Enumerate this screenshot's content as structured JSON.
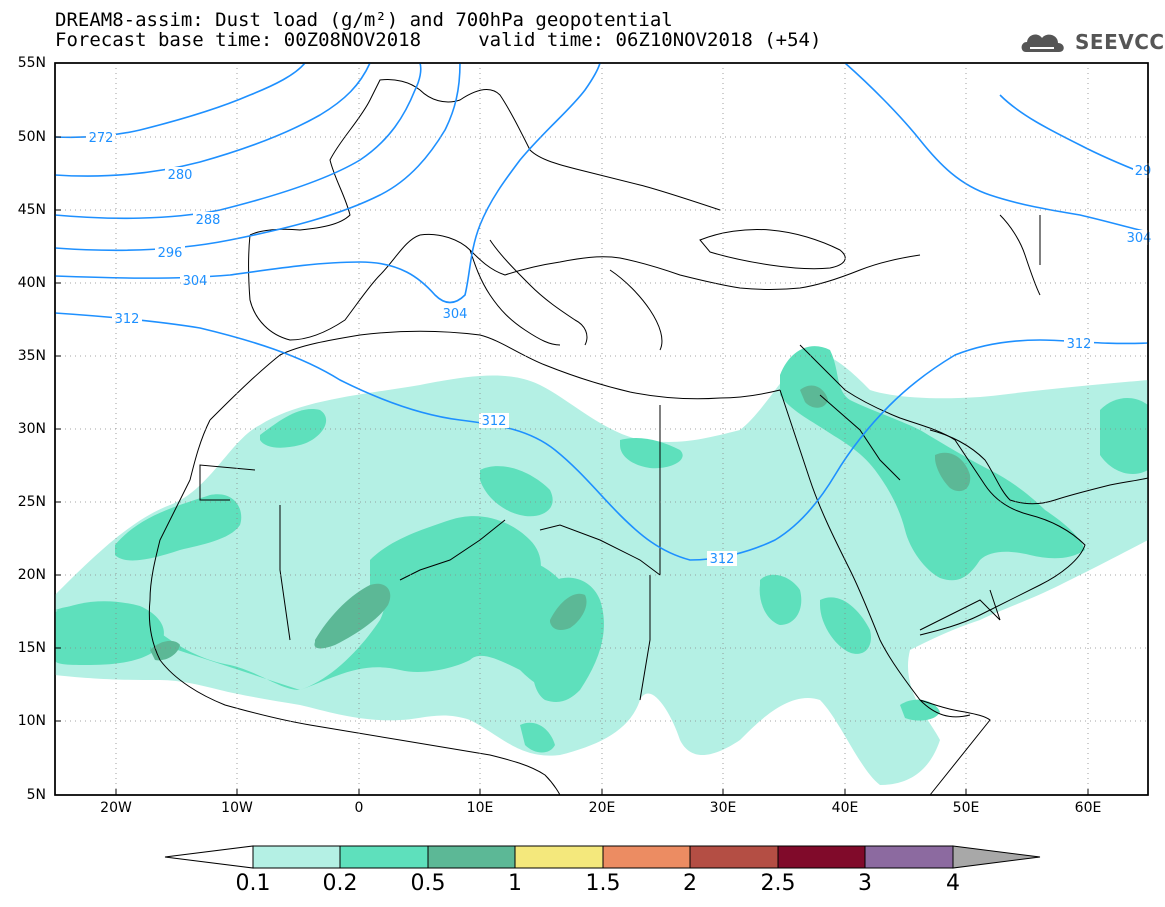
{
  "title": {
    "line1": "DREAM8-assim: Dust load (g/m²) and 700hPa geopotential",
    "line2": "Forecast base time: 00Z08NOV2018     valid time: 06Z10NOV2018 (+54)"
  },
  "logo": {
    "text": "SEEVCCC",
    "icon": "cloud-icon"
  },
  "map": {
    "projection": "lat-lon",
    "lon_range": [
      -25,
      65
    ],
    "lat_range": [
      5,
      55
    ],
    "lat_ticks": [
      "55N",
      "50N",
      "45N",
      "40N",
      "35N",
      "30N",
      "25N",
      "20N",
      "15N",
      "10N",
      "5N"
    ],
    "lon_ticks": [
      "20W",
      "10W",
      "0",
      "10E",
      "20E",
      "30E",
      "40E",
      "50E",
      "60E"
    ],
    "contour_labels": [
      "272",
      "280",
      "288",
      "296",
      "304",
      "304",
      "312",
      "312",
      "312",
      "312",
      "29",
      "304"
    ],
    "colors": {
      "coast": "#000000",
      "contour": "#1e90ff"
    }
  },
  "colorbar": {
    "labels": [
      "0.1",
      "0.2",
      "0.5",
      "1",
      "1.5",
      "2",
      "2.5",
      "3",
      "4"
    ],
    "colors": [
      "#ffffff",
      "#b4f0e4",
      "#5ee0bc",
      "#5cb896",
      "#f4e87c",
      "#ec8c62",
      "#b44e44",
      "#800a2a",
      "#8c6aa0",
      "#a8a8a8"
    ]
  }
}
